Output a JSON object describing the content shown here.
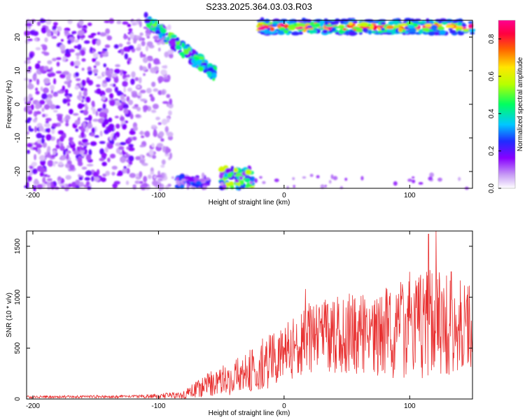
{
  "chart_data": [
    {
      "type": "heatmap",
      "title": "S233.2025.364.03.03.R03",
      "xlabel": "Height of straight line (km)",
      "ylabel": "Frequency (Hz)",
      "xlim": [
        -205,
        150
      ],
      "ylim": [
        -25,
        25
      ],
      "xticks": [
        -200,
        -100,
        0,
        100
      ],
      "yticks": [
        -20,
        -10,
        0,
        10,
        20
      ],
      "colorbar": {
        "label": "Normalized spectral amplitude",
        "range": [
          0,
          0.9
        ],
        "ticks": [
          0.0,
          0.2,
          0.4,
          0.6,
          0.8
        ]
      },
      "features": [
        {
          "name": "scatter",
          "x_range": [
            -205,
            -90
          ],
          "f_range": [
            -25,
            25
          ],
          "amplitude": 0.12
        },
        {
          "name": "upper-diagonal",
          "x_range": [
            -110,
            -55
          ],
          "f_range": [
            10,
            25
          ],
          "amplitude": 0.35
        },
        {
          "name": "top-band",
          "x_range": [
            -20,
            150
          ],
          "f_range": [
            19,
            25
          ],
          "amplitude": 0.8
        },
        {
          "name": "lower-blob",
          "x_range": [
            -50,
            -25
          ],
          "f_range": [
            -25,
            -19
          ],
          "amplitude": 0.4
        },
        {
          "name": "lower-left",
          "x_range": [
            -85,
            -60
          ],
          "f_range": [
            -25,
            -21
          ],
          "amplitude": 0.2
        }
      ]
    },
    {
      "type": "line",
      "xlabel": "Height of straight line (km)",
      "ylabel": "SNR (10 * v/v)",
      "xlim": [
        -205,
        150
      ],
      "ylim": [
        0,
        1650
      ],
      "xticks": [
        -200,
        -100,
        0,
        100
      ],
      "yticks": [
        0,
        500,
        1000,
        1500
      ],
      "color": "#e83030",
      "envelope": [
        {
          "x": -205,
          "mean": 20,
          "amp": 12
        },
        {
          "x": -110,
          "mean": 25,
          "amp": 15
        },
        {
          "x": -80,
          "mean": 40,
          "amp": 40
        },
        {
          "x": -60,
          "mean": 150,
          "amp": 120
        },
        {
          "x": -40,
          "mean": 220,
          "amp": 180
        },
        {
          "x": -20,
          "mean": 320,
          "amp": 250
        },
        {
          "x": 0,
          "mean": 450,
          "amp": 300
        },
        {
          "x": 20,
          "mean": 600,
          "amp": 350
        },
        {
          "x": 50,
          "mean": 650,
          "amp": 400
        },
        {
          "x": 80,
          "mean": 650,
          "amp": 450
        },
        {
          "x": 100,
          "mean": 700,
          "amp": 500
        },
        {
          "x": 120,
          "mean": 750,
          "amp": 550
        },
        {
          "x": 150,
          "mean": 700,
          "amp": 400
        }
      ],
      "peaks": [
        {
          "x": 115,
          "y": 1620
        },
        {
          "x": 121,
          "y": 1650
        },
        {
          "x": 100,
          "y": 1250
        },
        {
          "x": 133,
          "y": 1250
        },
        {
          "x": 17,
          "y": 1080
        }
      ]
    }
  ]
}
